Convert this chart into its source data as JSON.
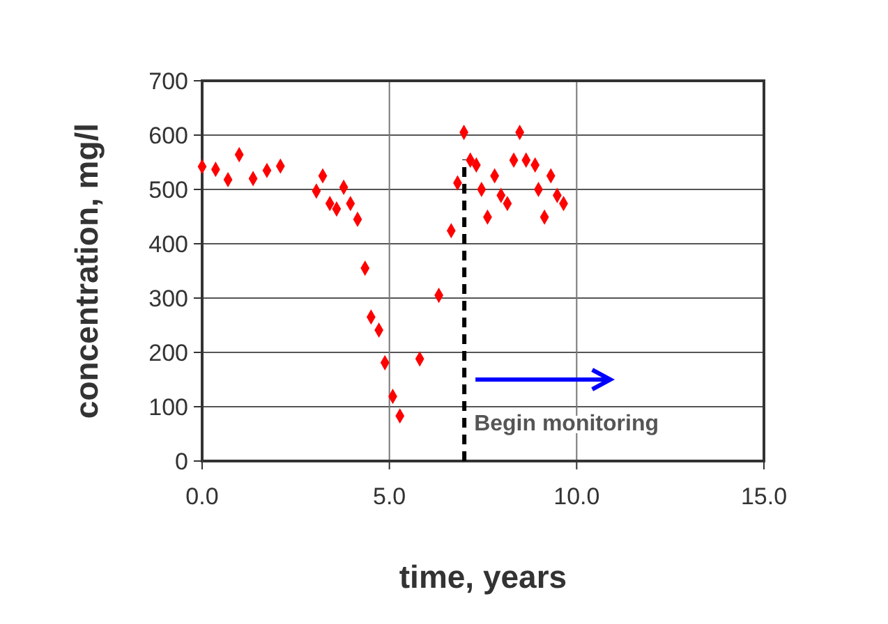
{
  "chart_data": {
    "type": "scatter",
    "xlabel": "time, years",
    "ylabel": "concentration, mg/l",
    "x": [
      0,
      0.36,
      0.69,
      0.99,
      1.36,
      1.73,
      2.09,
      3.05,
      3.22,
      3.41,
      3.59,
      3.78,
      3.96,
      4.15,
      4.35,
      4.51,
      4.72,
      4.88,
      5.09,
      5.28,
      5.81,
      6.32,
      6.65,
      6.82,
      6.99,
      7.16,
      7.32,
      7.46,
      7.62,
      7.81,
      7.98,
      8.15,
      8.32,
      8.48,
      8.65,
      8.89,
      8.98,
      9.14,
      9.31,
      9.48,
      9.65
    ],
    "series": [
      {
        "color": "#ff0000",
        "values": [
          542,
          537,
          518,
          564,
          520,
          535,
          543,
          497,
          525,
          474,
          464,
          504,
          474,
          445,
          355,
          265,
          241,
          181,
          119,
          83,
          188,
          305,
          424,
          512,
          605,
          554,
          545,
          500,
          449,
          525,
          489,
          474,
          554,
          605,
          554,
          545,
          500,
          449,
          525,
          489,
          474
        ]
      }
    ],
    "marker": "diamond",
    "xlim": [
      0,
      15
    ],
    "xticks": [
      {
        "value": 0,
        "label": "0.0"
      },
      {
        "value": 5,
        "label": "5.0"
      },
      {
        "value": 10,
        "label": "10.0"
      },
      {
        "value": 15,
        "label": "15.0"
      }
    ],
    "ylim": [
      0,
      700
    ],
    "yticks": [
      0,
      100,
      200,
      300,
      400,
      500,
      600,
      700
    ],
    "grid": true,
    "ref_lines": [
      {
        "axis": "x",
        "value": 7,
        "label": "Begin monitoring",
        "color": "#000000",
        "line_style": "dashed"
      }
    ]
  }
}
